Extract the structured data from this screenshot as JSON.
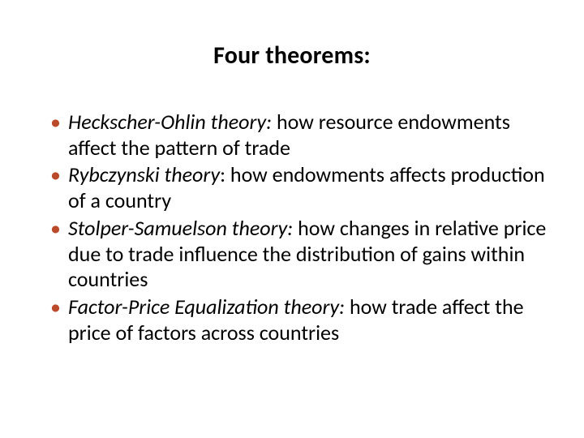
{
  "slide": {
    "title": "Four theorems:",
    "title_fontsize": 30,
    "title_fontweight": 700,
    "bullet_color": "#bb4a2b",
    "text_color": "#000000",
    "background_color": "#ffffff",
    "body_fontsize": 26,
    "bullets": [
      {
        "term": "Heckscher-Ohlin theory:",
        "rest": " how resource endowments affect the pattern of trade"
      },
      {
        "term": "Rybczynski theory",
        "rest": ": how endowments affects production of a country"
      },
      {
        "term": "Stolper-Samuelson theory:",
        "rest": "  how changes in relative price due to trade influence the distribution of gains within countries"
      },
      {
        "term": "Factor-Price Equalization theory:",
        "rest": " how trade affect the price of factors across countries"
      }
    ]
  }
}
